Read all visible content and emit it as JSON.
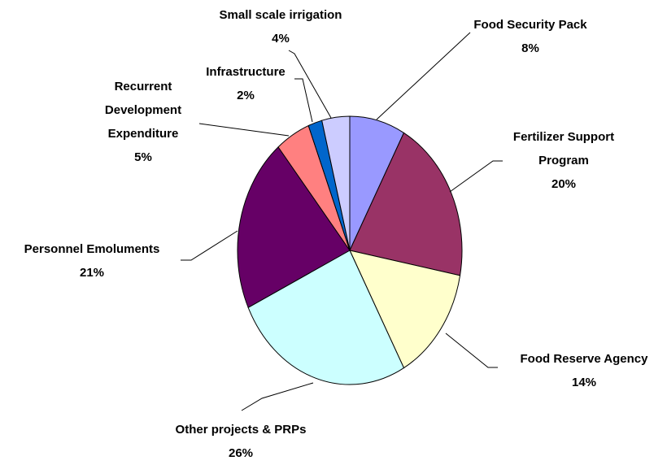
{
  "chart_data": {
    "type": "pie",
    "categories": [
      "Food Security Pack",
      "Fertilizer Support Program",
      "Food Reserve Agency",
      "Other projects & PRPs",
      "Personnel Emoluments",
      "Recurrent Development Expenditure",
      "Infrastructure",
      "Small scale irrigation"
    ],
    "values": [
      8,
      20,
      14,
      26,
      21,
      5,
      2,
      4
    ],
    "value_labels": [
      "8%",
      "20%",
      "14%",
      "26%",
      "21%",
      "5%",
      "2%",
      "4%"
    ],
    "colors": [
      "#9999ff",
      "#993366",
      "#ffffcc",
      "#ccffff",
      "#660066",
      "#ff8080",
      "#0066cc",
      "#ccccff"
    ]
  }
}
